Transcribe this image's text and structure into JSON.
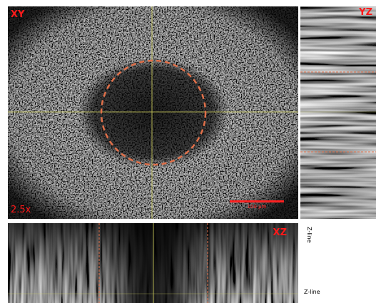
{
  "panels": {
    "xy": {
      "label": "XY",
      "magnification": "2.5x",
      "scale_bar": "100 µm"
    },
    "yz": {
      "label": "YZ"
    },
    "xz": {
      "label": "XZ"
    }
  },
  "z_line_labels": [
    "Z-line",
    "Z-line"
  ]
}
